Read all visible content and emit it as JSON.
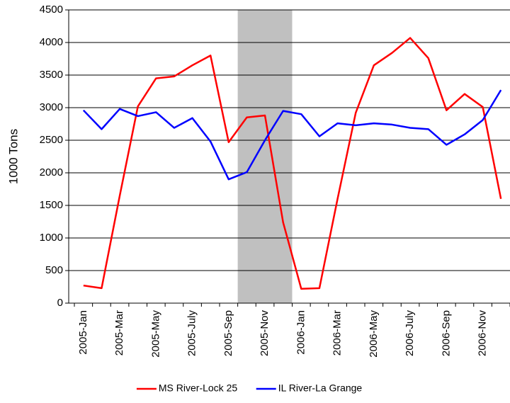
{
  "chart_data": {
    "type": "line",
    "ylabel": "1000 Tons",
    "categories": [
      "2005-Jan",
      null,
      "2005-Mar",
      null,
      "2005-May",
      null,
      "2005-July",
      null,
      "2005-Sep",
      null,
      "2005-Nov",
      null,
      "2006-Jan",
      null,
      "2006-Mar",
      null,
      "2006-May",
      null,
      "2006-July",
      null,
      "2006-Sep",
      null,
      "2006-Nov",
      null
    ],
    "series": [
      {
        "name": "MS River-Lock 25",
        "color": "#ff0000",
        "values": [
          270,
          230,
          1650,
          3020,
          3450,
          3480,
          3650,
          3800,
          2470,
          2850,
          2880,
          1240,
          220,
          230,
          1600,
          2920,
          3650,
          3840,
          4070,
          3760,
          2960,
          3210,
          3010,
          1600
        ]
      },
      {
        "name": "IL River-La Grange",
        "color": "#0000ff",
        "values": [
          2960,
          2670,
          2980,
          2870,
          2930,
          2690,
          2840,
          2480,
          1900,
          2010,
          2500,
          2950,
          2900,
          2560,
          2760,
          2730,
          2760,
          2740,
          2690,
          2670,
          2430,
          2590,
          2810,
          3270
        ]
      }
    ],
    "highlight": {
      "from": 8,
      "to": 11,
      "color": "#c0c0c0"
    },
    "ylim": [
      0,
      4500
    ],
    "yticks": [
      0,
      500,
      1000,
      1500,
      2000,
      2500,
      3000,
      3500,
      4000,
      4500
    ],
    "grid": true,
    "legend": "bottom"
  }
}
